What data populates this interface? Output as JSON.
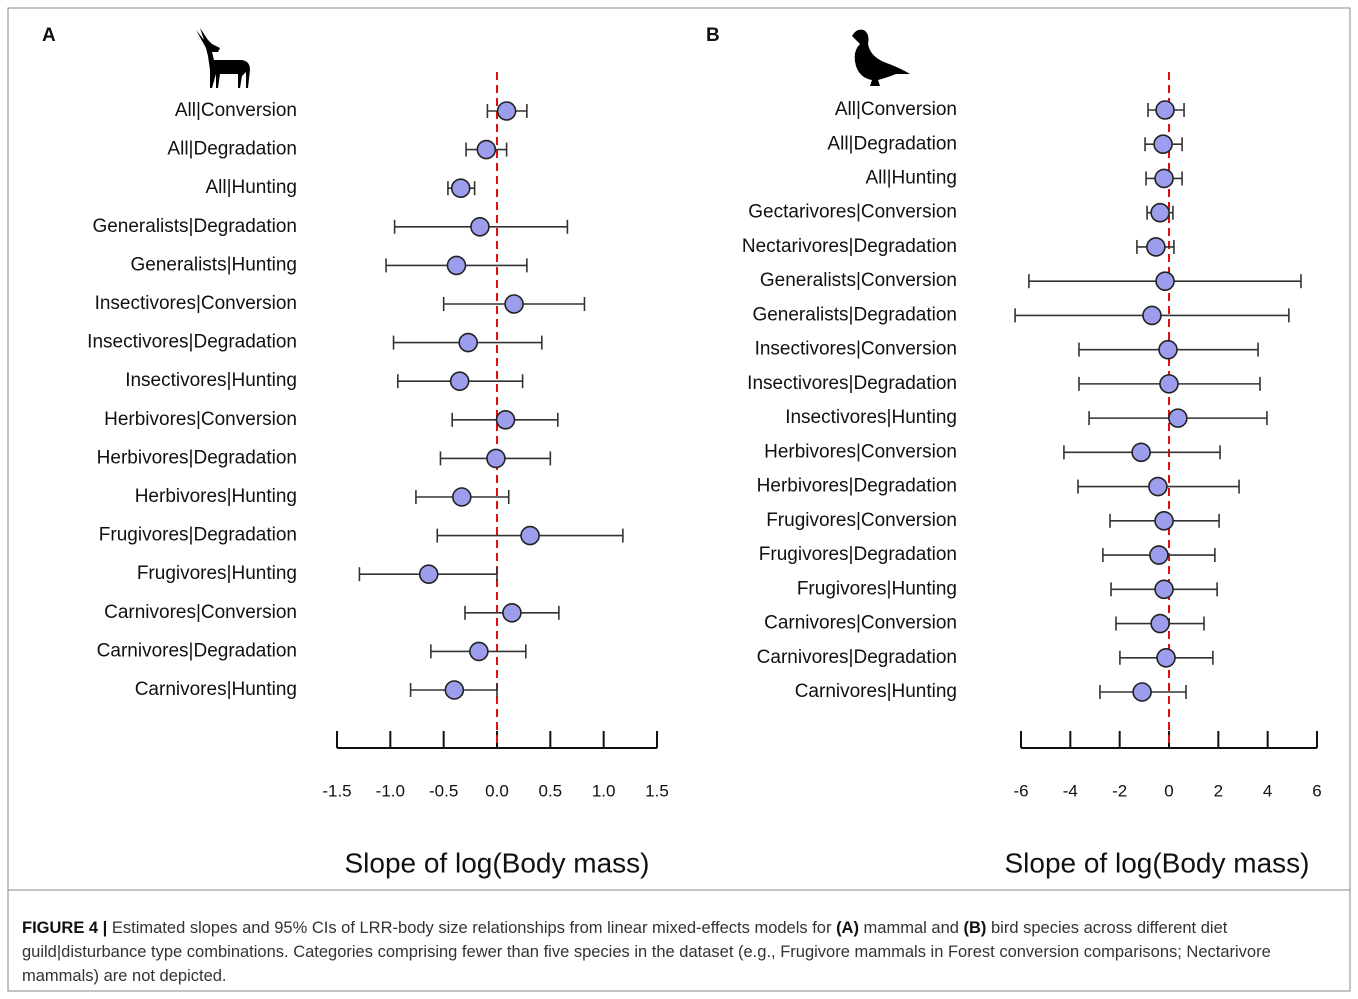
{
  "chart_data": [
    {
      "type": "forest",
      "panel": "A",
      "x_label": "Slope of log(Body mass)",
      "xlim": [
        -1.5,
        1.5
      ],
      "xticks": [
        -1.5,
        {
          "value": -1,
          "label": "-1.0"
        },
        -0.5,
        {
          "value": 0,
          "label": "0.0"
        },
        0.5,
        {
          "value": 1,
          "label": "1.0"
        },
        1.5
      ],
      "reference_line": 0,
      "color": "#9d9ded",
      "categories": [
        "All|Conversion",
        "All|Degradation",
        "All|Hunting",
        "Generalists|Degradation",
        "Generalists|Hunting",
        "Insectivores|Conversion",
        "Insectivores|Degradation",
        "Insectivores|Hunting",
        "Herbivores|Conversion",
        "Herbivores|Degradation",
        "Herbivores|Hunting",
        "Frugivores|Degradation",
        "Frugivores|Hunting",
        "Carnivores|Conversion",
        "Carnivores|Degradation",
        "Carnivores|Hunting"
      ],
      "values": [
        0.09,
        -0.1,
        -0.34,
        -0.16,
        -0.38,
        0.16,
        -0.27,
        -0.35,
        0.08,
        -0.01,
        -0.33,
        0.31,
        -0.64,
        0.14,
        -0.17,
        -0.4
      ],
      "lower": [
        -0.09,
        -0.29,
        -0.46,
        -0.96,
        -1.04,
        -0.5,
        -0.97,
        -0.93,
        -0.42,
        -0.53,
        -0.76,
        -0.56,
        -1.29,
        -0.3,
        -0.62,
        -0.81
      ],
      "upper": [
        0.28,
        0.09,
        -0.21,
        0.66,
        0.28,
        0.82,
        0.42,
        0.24,
        0.57,
        0.5,
        0.11,
        1.18,
        0.0,
        0.58,
        0.27,
        0.0
      ]
    },
    {
      "type": "forest",
      "panel": "B",
      "x_label": "Slope of log(Body mass)",
      "xlim": [
        -6,
        6
      ],
      "xticks": [
        -6,
        -4,
        -2,
        0,
        2,
        4,
        6
      ],
      "reference_line": 0,
      "color": "#9d9ded",
      "categories": [
        "All|Conversion",
        "All|Degradation",
        "All|Hunting",
        "Gectarivores|Conversion",
        "Nectarivores|Degradation",
        "Generalists|Conversion",
        "Generalists|Degradation",
        "Insectivores|Conversion",
        "Insectivores|Degradation",
        "Insectivores|Hunting",
        "Herbivores|Conversion",
        "Herbivores|Degradation",
        "Frugivores|Conversion",
        "Frugivores|Degradation",
        "Frugivores|Hunting",
        "Carnivores|Conversion",
        "Carnivores|Degradation",
        "Carnivores|Hunting"
      ],
      "values": [
        -0.16,
        -0.24,
        -0.2,
        -0.36,
        -0.53,
        -0.16,
        -0.69,
        -0.04,
        0,
        0.36,
        -1.13,
        -0.45,
        -0.2,
        -0.41,
        -0.2,
        -0.36,
        -0.12,
        -1.09
      ],
      "lower": [
        -0.85,
        -0.97,
        -0.93,
        -0.89,
        -1.3,
        -5.68,
        -6.24,
        -3.65,
        -3.65,
        -3.24,
        -4.26,
        -3.69,
        -2.39,
        -2.68,
        -2.35,
        -2.15,
        -1.99,
        -2.8
      ],
      "upper": [
        0.61,
        0.53,
        0.53,
        0.16,
        0.2,
        5.35,
        4.86,
        3.61,
        3.69,
        3.97,
        2.07,
        2.84,
        2.03,
        1.86,
        1.95,
        1.42,
        1.78,
        0.69
      ]
    }
  ],
  "caption": [
    {
      "text": "FIGURE 4 |",
      "bold": true
    },
    {
      "text": " Estimated slopes and 95% CIs of LRR-body size relationships from linear mixed-effects models for ",
      "bold": false
    },
    {
      "text": "(A)",
      "bold": true
    },
    {
      "text": " mammal and ",
      "bold": false
    },
    {
      "text": "(B)",
      "bold": true
    },
    {
      "text": " bird species across different diet guild|disturbance type combinations. Categories comprising fewer than five species in the dataset (e.g., Frugivore mammals in Forest conversion comparisons; Nectarivore mammals) are not depicted.",
      "bold": false
    }
  ]
}
